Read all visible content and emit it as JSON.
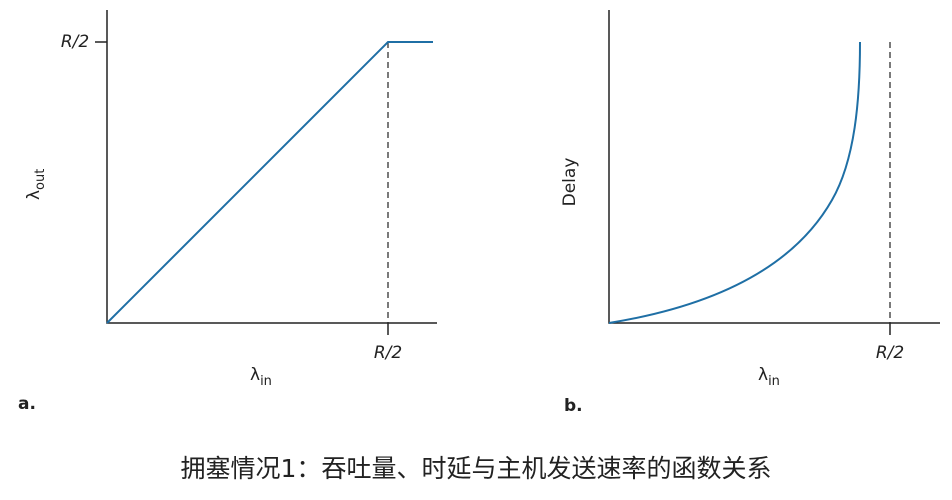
{
  "panels": [
    {
      "letter": "a.",
      "y_tick": "R/2",
      "x_tick": "R/2",
      "x_label": {
        "symbol": "λ",
        "subscript": "in"
      },
      "y_label": {
        "symbol": "λ",
        "subscript": "out"
      }
    },
    {
      "letter": "b.",
      "x_tick": "R/2",
      "x_label": {
        "symbol": "λ",
        "subscript": "in"
      },
      "y_label": "Delay"
    }
  ],
  "caption": "拥塞情况1：吞吐量、时延与主机发送速率的函数关系"
}
